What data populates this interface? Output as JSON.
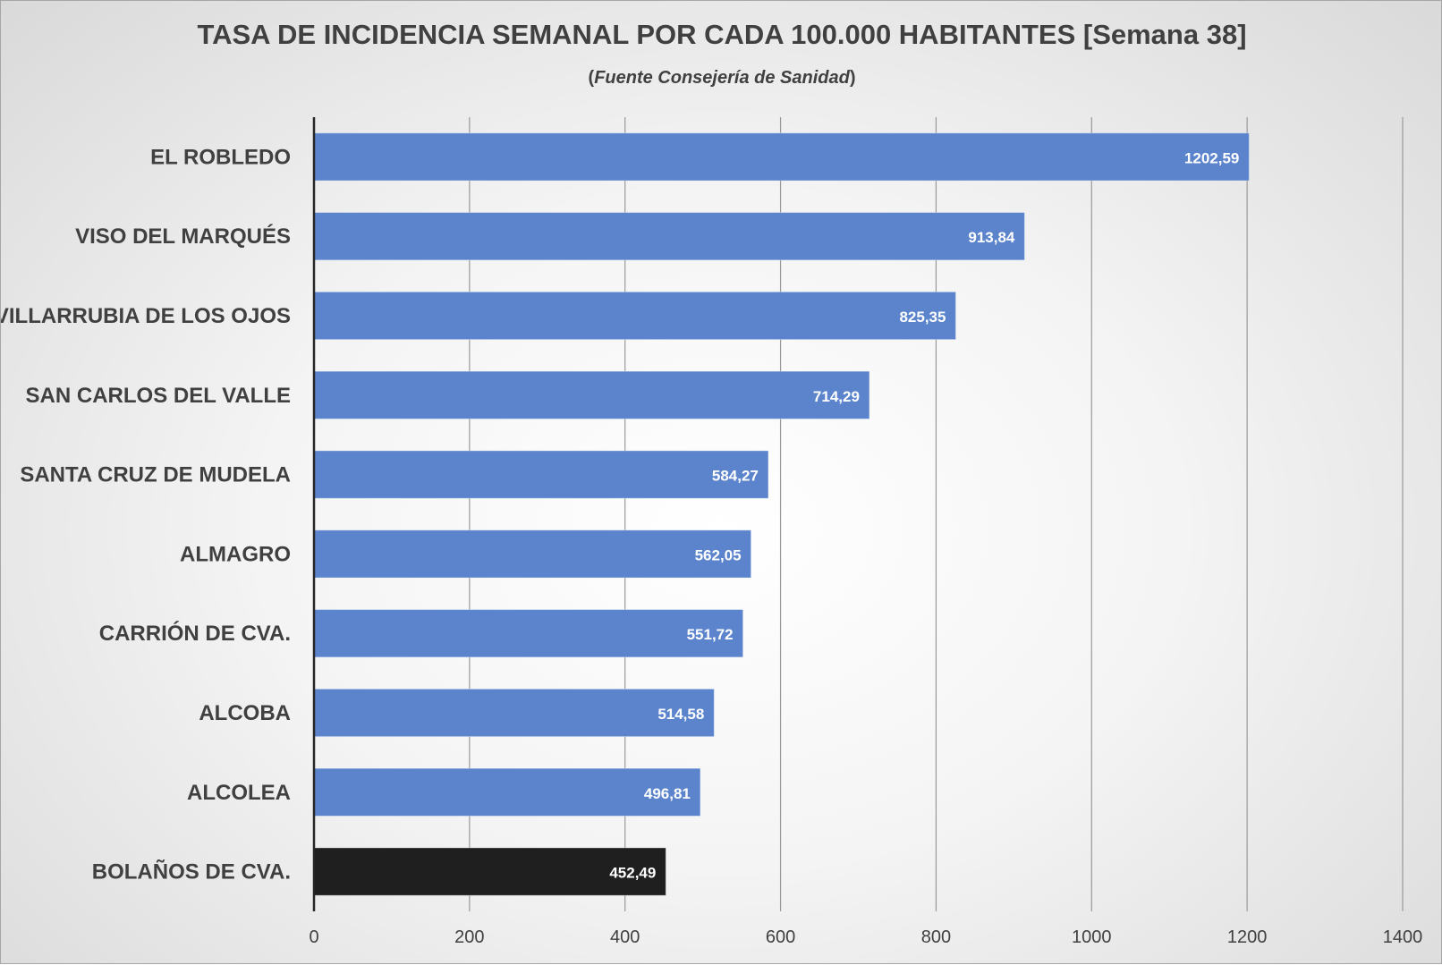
{
  "chart_data": {
    "type": "bar",
    "orientation": "horizontal",
    "title": "TASA DE INCIDENCIA SEMANAL POR CADA 100.000 HABITANTES [Semana 38]",
    "subtitle": {
      "open": "(",
      "source": "Fuente Consejería de Sanidad",
      "close": ")"
    },
    "xlabel": "",
    "ylabel": "",
    "xlim": [
      0,
      1400
    ],
    "xticks": [
      "0",
      "200",
      "400",
      "600",
      "800",
      "1000",
      "1200",
      "1400"
    ],
    "grid": true,
    "categories": [
      "EL ROBLEDO",
      "VISO DEL MARQUÉS",
      "VILLARRUBIA DE LOS OJOS",
      "SAN CARLOS DEL VALLE",
      "SANTA CRUZ DE MUDELA",
      "ALMAGRO",
      "CARRIÓN DE CVA.",
      "ALCOBA",
      "ALCOLEA",
      "BOLAÑOS DE CVA."
    ],
    "values": [
      1202.59,
      913.84,
      825.35,
      714.29,
      584.27,
      562.05,
      551.72,
      514.58,
      496.81,
      452.49
    ],
    "value_labels": [
      "1202,59",
      "913,84",
      "825,35",
      "714,29",
      "584,27",
      "562,05",
      "551,72",
      "514,58",
      "496,81",
      "452,49"
    ],
    "bar_colors": [
      "#5b84cc",
      "#5b84cc",
      "#5b84cc",
      "#5b84cc",
      "#5b84cc",
      "#5b84cc",
      "#5b84cc",
      "#5b84cc",
      "#5b84cc",
      "#1f1f1f"
    ],
    "colors": {
      "bar": "#5b84cc",
      "highlight": "#1f1f1f",
      "text": "#404040",
      "data_label": "#ffffff",
      "grid": "#999999"
    }
  }
}
